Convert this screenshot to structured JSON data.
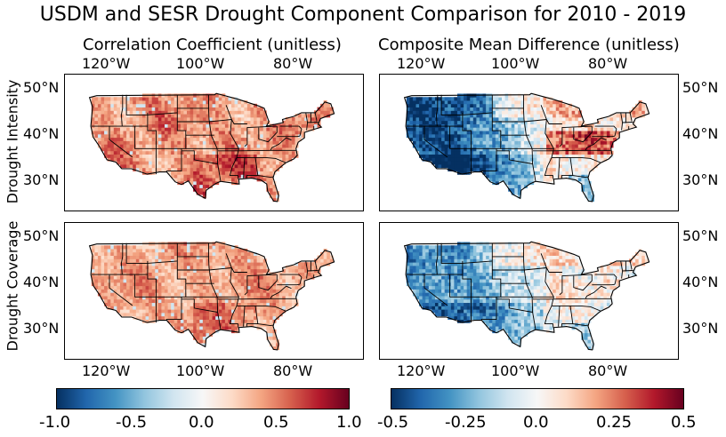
{
  "title": "USDM and SESR Drought Component Comparison for 2010 - 2019",
  "columns": [
    {
      "title": "Correlation Coefficient (unitless)"
    },
    {
      "title": "Composite Mean Difference (unitless)"
    }
  ],
  "rows": [
    {
      "label": "Drought Intensity"
    },
    {
      "label": "Drought Coverage"
    }
  ],
  "lon_ticks": [
    "120°W",
    "100°W",
    "80°W"
  ],
  "lat_ticks": [
    "50°N",
    "40°N",
    "30°N"
  ],
  "colorbars": [
    {
      "name": "correlation",
      "ticks": [
        "-1.0",
        "-0.5",
        "0.0",
        "0.5",
        "1.0"
      ],
      "min": -1.0,
      "max": 1.0
    },
    {
      "name": "mean-difference",
      "ticks": [
        "-0.5",
        "-0.25",
        "0.0",
        "0.25",
        "0.5"
      ],
      "min": -0.5,
      "max": 0.5
    }
  ],
  "colormap": {
    "name": "RdBu_r",
    "stops": [
      "#053061",
      "#2166ac",
      "#4393c3",
      "#92c5de",
      "#d1e5f0",
      "#f7f7f7",
      "#fddbc7",
      "#f4a582",
      "#d6604d",
      "#b2182b",
      "#67001f"
    ]
  },
  "panels": [
    {
      "row": "Drought Intensity",
      "column": "Correlation Coefficient (unitless)",
      "pattern": "correlation",
      "base_value": 0.45,
      "variance": 0.35
    },
    {
      "row": "Drought Intensity",
      "column": "Composite Mean Difference (unitless)",
      "pattern": "west-negative",
      "west_value": -0.45,
      "east_value": 0.05
    },
    {
      "row": "Drought Coverage",
      "column": "Correlation Coefficient (unitless)",
      "pattern": "correlation",
      "base_value": 0.4,
      "variance": 0.3
    },
    {
      "row": "Drought Coverage",
      "column": "Composite Mean Difference (unitless)",
      "pattern": "west-negative-weak",
      "west_value": -0.3,
      "east_value": 0.0
    }
  ]
}
